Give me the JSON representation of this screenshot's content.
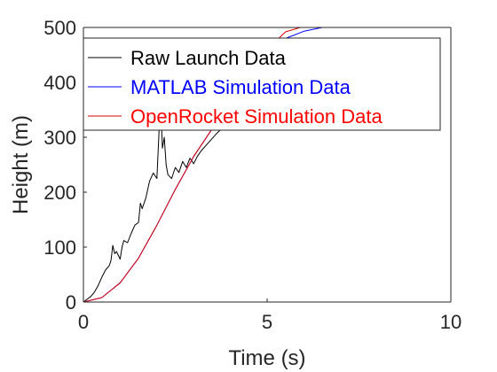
{
  "chart_data": {
    "type": "line",
    "xlabel": "Time (s)",
    "ylabel": "Height (m)",
    "xlim": [
      0,
      10
    ],
    "ylim": [
      0,
      500
    ],
    "xticks": [
      0,
      5,
      10
    ],
    "yticks": [
      0,
      100,
      200,
      300,
      400,
      500
    ],
    "grid": false,
    "legend_position": "top-right",
    "series": [
      {
        "name": "Raw Launch Data",
        "color": "#000000",
        "text_color": "#000000",
        "x": [
          0,
          0.1,
          0.2,
          0.3,
          0.4,
          0.5,
          0.6,
          0.7,
          0.75,
          0.8,
          0.85,
          0.9,
          1.0,
          1.05,
          1.1,
          1.2,
          1.3,
          1.4,
          1.5,
          1.55,
          1.6,
          1.7,
          1.8,
          1.9,
          2.0,
          2.05,
          2.1,
          2.15,
          2.2,
          2.25,
          2.3,
          2.4,
          2.5,
          2.6,
          2.7,
          2.8,
          2.9,
          3.0,
          3.1,
          3.2,
          3.4,
          3.6,
          3.8
        ],
        "y": [
          0,
          5,
          10,
          18,
          30,
          45,
          58,
          66,
          75,
          103,
          88,
          92,
          78,
          100,
          112,
          108,
          125,
          140,
          145,
          180,
          170,
          190,
          220,
          235,
          225,
          300,
          370,
          280,
          300,
          250,
          232,
          225,
          245,
          236,
          256,
          245,
          262,
          252,
          265,
          275,
          290,
          305,
          318
        ]
      },
      {
        "name": "MATLAB Simulation Data",
        "color": "#0000ff",
        "text_color": "#0000ff",
        "x": [
          0,
          0.5,
          1.0,
          1.5,
          2.0,
          2.5,
          3.0,
          3.5,
          4.0,
          4.5,
          5.0,
          5.5,
          6.0,
          6.5
        ],
        "y": [
          0,
          8,
          35,
          80,
          140,
          205,
          265,
          315,
          360,
          405,
          445,
          480,
          493,
          500
        ]
      },
      {
        "name": "OpenRocket Simulation Data",
        "color": "#dd0000",
        "text_color": "#ff0000",
        "x": [
          0,
          0.5,
          1.0,
          1.5,
          2.0,
          2.5,
          3.0,
          3.5,
          4.0,
          4.5,
          5.0,
          5.5,
          5.9
        ],
        "y": [
          0,
          8,
          35,
          80,
          140,
          205,
          265,
          315,
          365,
          415,
          460,
          492,
          500
        ]
      }
    ]
  }
}
